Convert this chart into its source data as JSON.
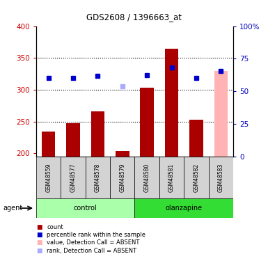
{
  "title": "GDS2608 / 1396663_at",
  "samples": [
    "GSM48559",
    "GSM48577",
    "GSM48578",
    "GSM48579",
    "GSM48580",
    "GSM48581",
    "GSM48582",
    "GSM48583"
  ],
  "bar_values": [
    234,
    248,
    266,
    204,
    303,
    365,
    253,
    null
  ],
  "absent_bar_value": 330,
  "absent_bar_index": 7,
  "absent_bar_color": "#ffb3b3",
  "dot_values": [
    319,
    319,
    322,
    null,
    323,
    335,
    319,
    330
  ],
  "dot_absent_value": 305,
  "dot_absent_index": 3,
  "dot_color": "#0000cc",
  "dot_absent_color": "#aaaaff",
  "dark_red": "#aa0000",
  "ylim_left": [
    195,
    400
  ],
  "ylim_right": [
    0,
    100
  ],
  "yticks_left": [
    200,
    250,
    300,
    350,
    400
  ],
  "yticks_right": [
    0,
    25,
    50,
    75,
    100
  ],
  "ctrl_color": "#aaffaa",
  "olanz_color": "#33dd33",
  "bar_width": 0.55,
  "background_color": "white",
  "tick_color_left": "#cc0000",
  "tick_color_right": "#0000bb",
  "legend_items": [
    {
      "color": "#aa0000",
      "label": "count"
    },
    {
      "color": "#0000cc",
      "label": "percentile rank within the sample"
    },
    {
      "color": "#ffb3b3",
      "label": "value, Detection Call = ABSENT"
    },
    {
      "color": "#aaaaff",
      "label": "rank, Detection Call = ABSENT"
    }
  ]
}
